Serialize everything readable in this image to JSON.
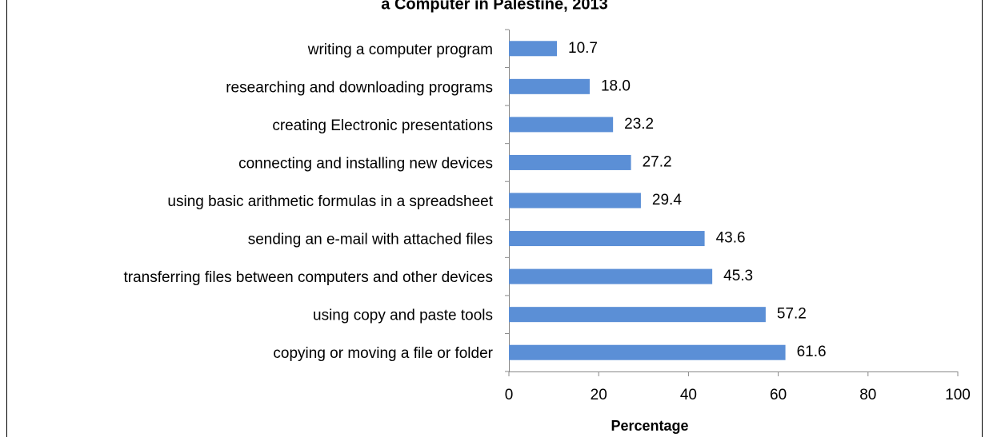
{
  "chart_data": {
    "type": "hbar",
    "title": "a Computer in Palestine, 2013",
    "categories": [
      "writing a computer program",
      "researching and downloading programs",
      "creating Electronic presentations",
      "connecting and installing new devices",
      "using basic arithmetic formulas in a spreadsheet",
      "sending an e-mail with attached files",
      "transferring files between computers and other devices",
      "using copy and paste tools",
      "copying or moving a file or folder"
    ],
    "values": [
      10.7,
      18.0,
      23.2,
      27.2,
      29.4,
      43.6,
      45.3,
      57.2,
      61.6
    ],
    "value_labels": [
      "10.7",
      "18.0",
      "23.2",
      "27.2",
      "29.4",
      "43.6",
      "45.3",
      "57.2",
      "61.6"
    ],
    "color": "#5b8fd6",
    "xlabel": "Percentage",
    "xlim": [
      0,
      100
    ],
    "xticks": [
      0,
      20,
      40,
      60,
      80,
      100
    ]
  }
}
